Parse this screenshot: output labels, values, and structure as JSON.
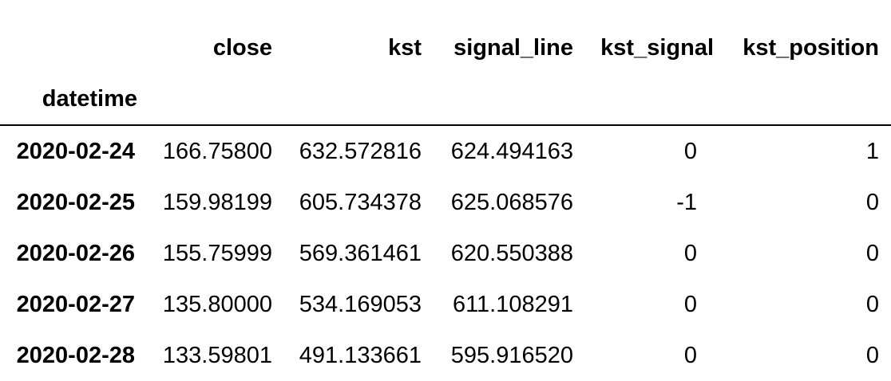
{
  "dataframe": {
    "columns": [
      "close",
      "kst",
      "signal_line",
      "kst_signal",
      "kst_position"
    ],
    "index_name": "datetime",
    "rows": [
      {
        "index": "2020-02-24",
        "values": [
          "166.75800",
          "632.572816",
          "624.494163",
          "0",
          "1"
        ]
      },
      {
        "index": "2020-02-25",
        "values": [
          "159.98199",
          "605.734378",
          "625.068576",
          "-1",
          "0"
        ]
      },
      {
        "index": "2020-02-26",
        "values": [
          "155.75999",
          "569.361461",
          "620.550388",
          "0",
          "0"
        ]
      },
      {
        "index": "2020-02-27",
        "values": [
          "135.80000",
          "534.169053",
          "611.108291",
          "0",
          "0"
        ]
      },
      {
        "index": "2020-02-28",
        "values": [
          "133.59801",
          "491.133661",
          "595.916520",
          "0",
          "0"
        ]
      }
    ]
  }
}
